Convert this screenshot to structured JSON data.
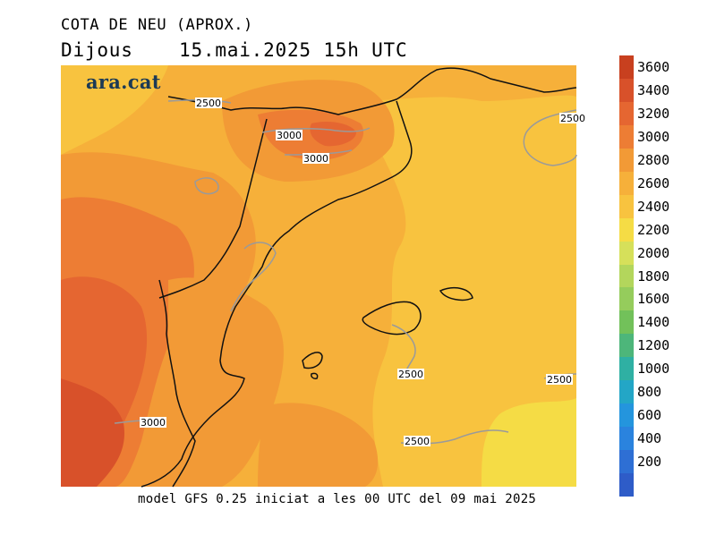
{
  "header": {
    "title": "COTA DE NEU (APROX.)",
    "day": "Dijous",
    "datetime": "15.mai.2025 15h UTC"
  },
  "brand": {
    "logo_text": "ara.cat"
  },
  "footer": {
    "text": "model GFS 0.25 iniciat a les 00 UTC del 09 mai 2025"
  },
  "legend": {
    "items": [
      {
        "label": "3600",
        "color": "#c8401f"
      },
      {
        "label": "3400",
        "color": "#d8512a"
      },
      {
        "label": "3200",
        "color": "#e56631"
      },
      {
        "label": "3000",
        "color": "#ed7d34"
      },
      {
        "label": "2800",
        "color": "#f29a36"
      },
      {
        "label": "2600",
        "color": "#f6b03a"
      },
      {
        "label": "2400",
        "color": "#f8c33f"
      },
      {
        "label": "2200",
        "color": "#f5dc45"
      },
      {
        "label": "2000",
        "color": "#d6e05a"
      },
      {
        "label": "1800",
        "color": "#b3d65c"
      },
      {
        "label": "1600",
        "color": "#95cc5c"
      },
      {
        "label": "1400",
        "color": "#72c15a"
      },
      {
        "label": "1200",
        "color": "#4db67a"
      },
      {
        "label": "1000",
        "color": "#2fb0a3"
      },
      {
        "label": "800",
        "color": "#23a6c6"
      },
      {
        "label": "600",
        "color": "#2495dd"
      },
      {
        "label": "400",
        "color": "#2a83de"
      },
      {
        "label": "200",
        "color": "#2e6fd4"
      }
    ],
    "bottom_color": "#2e5cc8"
  },
  "contour_labels": [
    {
      "id": "c1",
      "text": "2500"
    },
    {
      "id": "c2",
      "text": "3000"
    },
    {
      "id": "c3",
      "text": "3000"
    },
    {
      "id": "c4",
      "text": "2500"
    },
    {
      "id": "c5",
      "text": "2500"
    },
    {
      "id": "c6",
      "text": "2500"
    },
    {
      "id": "c7",
      "text": "3000"
    },
    {
      "id": "c8",
      "text": "2500"
    }
  ]
}
